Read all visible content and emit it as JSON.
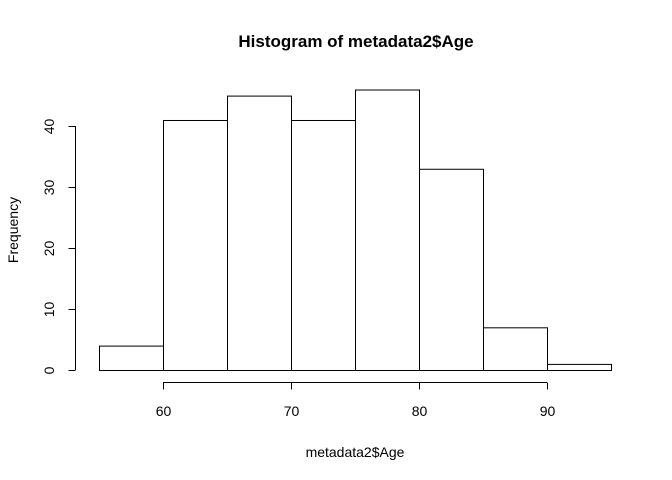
{
  "chart_data": {
    "type": "bar",
    "title": "Histogram of metadata2$Age",
    "xlabel": "metadata2$Age",
    "ylabel": "Frequency",
    "bins": [
      {
        "start": 55,
        "end": 60,
        "count": 4
      },
      {
        "start": 60,
        "end": 65,
        "count": 41
      },
      {
        "start": 65,
        "end": 70,
        "count": 45
      },
      {
        "start": 70,
        "end": 75,
        "count": 41
      },
      {
        "start": 75,
        "end": 80,
        "count": 46
      },
      {
        "start": 80,
        "end": 85,
        "count": 33
      },
      {
        "start": 85,
        "end": 90,
        "count": 7
      },
      {
        "start": 90,
        "end": 95,
        "count": 1
      }
    ],
    "x_ticks": [
      60,
      70,
      80,
      90
    ],
    "y_ticks": [
      0,
      10,
      20,
      30,
      40
    ],
    "xlim": [
      55,
      95
    ],
    "ylim": [
      0,
      46
    ],
    "grid": false,
    "legend": "none"
  }
}
